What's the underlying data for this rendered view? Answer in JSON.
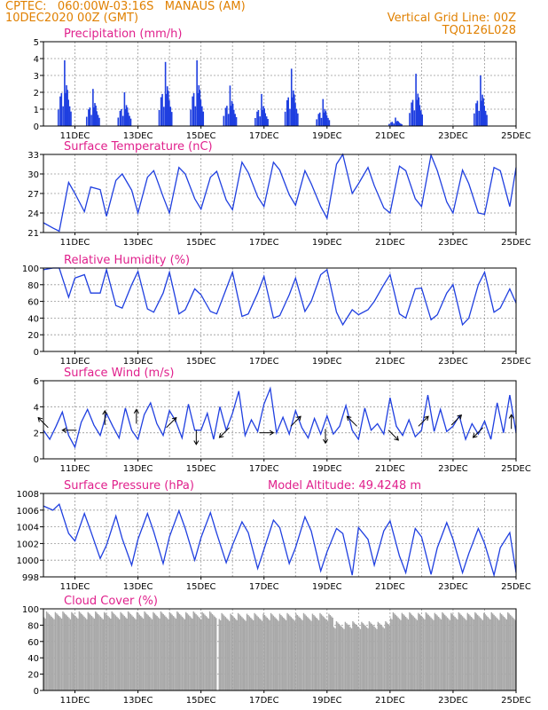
{
  "header": {
    "line1_left": "CPTEC:   060:00W-03:16S   MANAUS (AM)",
    "line2_left": "10DEC2020 00Z (GMT)",
    "line2_right": "Vertical Grid Line: 00Z",
    "line3_right": "TQ0126L028"
  },
  "colors": {
    "series": "#1f3fe0",
    "title": "#e0208c",
    "header": "#e08000",
    "cloud": "#a8a8a8"
  },
  "x_ticks": [
    "11DEC",
    "13DEC",
    "15DEC",
    "17DEC",
    "19DEC",
    "21DEC",
    "23DEC",
    "25DEC"
  ],
  "chart_data": [
    {
      "type": "bar",
      "title": "Precipitation (mm/h)",
      "x_unit": "days since 10DEC2020 00Z",
      "xlim": [
        0,
        15
      ],
      "ylim": [
        0,
        5
      ],
      "yticks": [
        0,
        1,
        2,
        3,
        4,
        5
      ],
      "grid": true,
      "events": [
        {
          "day": 0.65,
          "peak": 3.9
        },
        {
          "day": 1.55,
          "peak": 2.2
        },
        {
          "day": 2.55,
          "peak": 2.0
        },
        {
          "day": 3.85,
          "peak": 3.8
        },
        {
          "day": 4.85,
          "peak": 3.9
        },
        {
          "day": 5.9,
          "peak": 2.4
        },
        {
          "day": 6.9,
          "peak": 1.9
        },
        {
          "day": 7.85,
          "peak": 3.4
        },
        {
          "day": 8.85,
          "peak": 1.6
        },
        {
          "day": 11.15,
          "peak": 0.5
        },
        {
          "day": 11.8,
          "peak": 3.1
        },
        {
          "day": 13.85,
          "peak": 3.0
        }
      ]
    },
    {
      "type": "line",
      "title": "Surface Temperature (nC)",
      "x_unit": "days",
      "xlim": [
        0,
        15
      ],
      "ylim": [
        21,
        33
      ],
      "yticks": [
        21,
        24,
        27,
        30,
        33
      ],
      "grid": true,
      "x": [
        0,
        0.3,
        0.5,
        0.8,
        1.0,
        1.3,
        1.5,
        1.8,
        2.0,
        2.3,
        2.5,
        2.8,
        3.0,
        3.3,
        3.5,
        3.8,
        4.0,
        4.3,
        4.5,
        4.8,
        5.0,
        5.3,
        5.5,
        5.8,
        6.0,
        6.3,
        6.5,
        6.8,
        7.0,
        7.3,
        7.5,
        7.8,
        8.0,
        8.3,
        8.5,
        8.8,
        9.0,
        9.3,
        9.5,
        9.8,
        10.0,
        10.3,
        10.5,
        10.8,
        11.0,
        11.3,
        11.5,
        11.8,
        12.0,
        12.3,
        12.5,
        12.8,
        13.0,
        13.3,
        13.5,
        13.8,
        14.0,
        14.3,
        14.5,
        14.8,
        15.0
      ],
      "y": [
        22.5,
        21.7,
        21.2,
        28.7,
        27.0,
        24.2,
        28.0,
        27.6,
        23.5,
        29.0,
        30.0,
        27.5,
        24.0,
        29.5,
        30.5,
        26.5,
        24.0,
        31.0,
        30.0,
        26.2,
        24.6,
        29.5,
        30.4,
        26.0,
        24.5,
        31.8,
        30.2,
        26.5,
        25.0,
        31.8,
        30.6,
        26.8,
        25.2,
        30.5,
        28.5,
        25.0,
        23.2,
        31.5,
        33.2,
        27.0,
        28.5,
        31.0,
        28.2,
        24.8,
        24.0,
        31.2,
        30.5,
        26.2,
        25.0,
        32.9,
        30.5,
        25.7,
        24.0,
        30.6,
        28.5,
        24.0,
        23.8,
        31.0,
        30.5,
        25.0,
        31.0
      ]
    },
    {
      "type": "line",
      "title": "Relative Humidity (%)",
      "x_unit": "days",
      "xlim": [
        0,
        15
      ],
      "ylim": [
        0,
        100
      ],
      "yticks": [
        0,
        20,
        40,
        60,
        80,
        100
      ],
      "grid": true,
      "x": [
        0,
        0.3,
        0.5,
        0.8,
        1.0,
        1.3,
        1.5,
        1.8,
        2.0,
        2.3,
        2.5,
        2.8,
        3.0,
        3.3,
        3.5,
        3.8,
        4.0,
        4.3,
        4.5,
        4.8,
        5.0,
        5.3,
        5.5,
        5.8,
        6.0,
        6.3,
        6.5,
        6.8,
        7.0,
        7.3,
        7.5,
        7.8,
        8.0,
        8.3,
        8.5,
        8.8,
        9.0,
        9.3,
        9.5,
        9.8,
        10.0,
        10.3,
        10.5,
        10.8,
        11.0,
        11.3,
        11.5,
        11.8,
        12.0,
        12.3,
        12.5,
        12.8,
        13.0,
        13.3,
        13.5,
        13.8,
        14.0,
        14.3,
        14.5,
        14.8,
        15.0
      ],
      "y": [
        98,
        100,
        100,
        65,
        88,
        92,
        70,
        70,
        98,
        55,
        52,
        80,
        96,
        51,
        47,
        70,
        95,
        45,
        50,
        75,
        68,
        48,
        45,
        75,
        95,
        42,
        45,
        70,
        90,
        40,
        43,
        68,
        88,
        48,
        60,
        92,
        98,
        47,
        32,
        50,
        44,
        50,
        60,
        80,
        92,
        45,
        40,
        75,
        76,
        38,
        44,
        70,
        80,
        32,
        40,
        80,
        95,
        47,
        52,
        75,
        58
      ]
    },
    {
      "type": "line",
      "title": "Surface Wind (m/s)",
      "x_unit": "days",
      "xlim": [
        0,
        15
      ],
      "ylim": [
        0,
        6
      ],
      "yticks": [
        0,
        2,
        4,
        6
      ],
      "grid": true,
      "x": [
        0,
        0.2,
        0.4,
        0.6,
        0.8,
        1.0,
        1.2,
        1.4,
        1.6,
        1.8,
        2.0,
        2.2,
        2.4,
        2.6,
        2.8,
        3.0,
        3.2,
        3.4,
        3.6,
        3.8,
        4.0,
        4.2,
        4.4,
        4.6,
        4.8,
        5.0,
        5.2,
        5.4,
        5.6,
        5.8,
        6.0,
        6.2,
        6.4,
        6.6,
        6.8,
        7.0,
        7.2,
        7.4,
        7.6,
        7.8,
        8.0,
        8.2,
        8.4,
        8.6,
        8.8,
        9.0,
        9.2,
        9.4,
        9.6,
        9.8,
        10.0,
        10.2,
        10.4,
        10.6,
        10.8,
        11.0,
        11.2,
        11.4,
        11.6,
        11.8,
        12.0,
        12.2,
        12.4,
        12.6,
        12.8,
        13.0,
        13.2,
        13.4,
        13.6,
        13.8,
        14.0,
        14.2,
        14.4,
        14.6,
        14.8,
        15.0
      ],
      "y": [
        2.2,
        1.5,
        2.5,
        3.6,
        1.8,
        0.9,
        2.8,
        3.8,
        2.6,
        1.8,
        3.5,
        2.5,
        1.6,
        3.9,
        2.2,
        1.5,
        3.4,
        4.3,
        2.7,
        1.8,
        3.7,
        2.9,
        1.6,
        4.2,
        2.2,
        2.2,
        3.5,
        1.5,
        4.0,
        2.2,
        3.5,
        5.2,
        1.8,
        3.0,
        2.1,
        4.2,
        5.4,
        2.0,
        3.2,
        1.9,
        3.7,
        2.4,
        1.6,
        3.1,
        1.9,
        3.3,
        1.9,
        2.5,
        4.1,
        2.2,
        1.5,
        3.9,
        2.2,
        2.7,
        1.9,
        4.7,
        2.5,
        1.8,
        3.0,
        1.7,
        2.2,
        4.9,
        2.1,
        3.8,
        2.1,
        2.5,
        3.3,
        1.5,
        2.7,
        1.9,
        2.9,
        1.5,
        4.3,
        2.0,
        4.9,
        2.0
      ],
      "vectors": [
        {
          "day": 0.15,
          "len": 2.4,
          "dir": "upleft"
        },
        {
          "day": 1.05,
          "len": 2.2,
          "dir": "left"
        },
        {
          "day": 1.95,
          "len": 2.6,
          "dir": "up"
        },
        {
          "day": 2.95,
          "len": 2.7,
          "dir": "up"
        },
        {
          "day": 3.9,
          "len": 2.4,
          "dir": "upright"
        },
        {
          "day": 4.85,
          "len": 2.2,
          "dir": "down"
        },
        {
          "day": 5.9,
          "len": 2.4,
          "dir": "downleft"
        },
        {
          "day": 6.85,
          "len": 2.0,
          "dir": "right"
        },
        {
          "day": 7.85,
          "len": 2.5,
          "dir": "upright"
        },
        {
          "day": 8.95,
          "len": 2.3,
          "dir": "down"
        },
        {
          "day": 9.95,
          "len": 2.5,
          "dir": "upleft"
        },
        {
          "day": 10.95,
          "len": 2.2,
          "dir": "downright"
        },
        {
          "day": 11.9,
          "len": 2.5,
          "dir": "upright"
        },
        {
          "day": 12.95,
          "len": 2.6,
          "dir": "upright"
        },
        {
          "day": 13.95,
          "len": 2.4,
          "dir": "downleft"
        },
        {
          "day": 14.85,
          "len": 2.3,
          "dir": "up"
        }
      ]
    },
    {
      "type": "line",
      "title": "Surface Pressure (hPa)",
      "annotation": "Model Altitude: 49.4248 m",
      "x_unit": "days",
      "xlim": [
        0,
        15
      ],
      "ylim": [
        998,
        1008
      ],
      "yticks": [
        998,
        1000,
        1002,
        1004,
        1006,
        1008
      ],
      "grid": true,
      "x": [
        0,
        0.3,
        0.5,
        0.8,
        1.0,
        1.3,
        1.5,
        1.8,
        2.0,
        2.3,
        2.5,
        2.8,
        3.0,
        3.3,
        3.5,
        3.8,
        4.0,
        4.3,
        4.5,
        4.8,
        5.0,
        5.3,
        5.5,
        5.8,
        6.0,
        6.3,
        6.5,
        6.8,
        7.0,
        7.3,
        7.5,
        7.8,
        8.0,
        8.3,
        8.5,
        8.8,
        9.0,
        9.3,
        9.5,
        9.8,
        10.0,
        10.3,
        10.5,
        10.8,
        11.0,
        11.3,
        11.5,
        11.8,
        12.0,
        12.3,
        12.5,
        12.8,
        13.0,
        13.3,
        13.5,
        13.8,
        14.0,
        14.3,
        14.5,
        14.8,
        15.0
      ],
      "y": [
        1006.5,
        1006.0,
        1006.7,
        1003.2,
        1002.3,
        1005.6,
        1003.5,
        1000.2,
        1001.8,
        1005.3,
        1002.6,
        999.4,
        1002.5,
        1005.6,
        1003.4,
        999.6,
        1002.8,
        1005.9,
        1003.8,
        1000.0,
        1002.7,
        1005.7,
        1003.2,
        999.7,
        1001.8,
        1004.6,
        1003.3,
        999.0,
        1001.3,
        1004.8,
        1003.9,
        999.6,
        1001.5,
        1005.2,
        1003.5,
        998.7,
        1001.0,
        1003.8,
        1003.2,
        998.2,
        1003.9,
        1002.5,
        999.4,
        1003.5,
        1004.7,
        1000.5,
        998.5,
        1003.8,
        1002.8,
        998.3,
        1001.5,
        1004.5,
        1002.5,
        998.5,
        1000.8,
        1003.8,
        1002.0,
        998.2,
        1001.5,
        1003.3,
        998.5
      ]
    },
    {
      "type": "bar",
      "title": "Cloud Cover (%)",
      "x_unit": "days",
      "xlim": [
        0,
        15
      ],
      "ylim": [
        0,
        100
      ],
      "yticks": [
        0,
        20,
        40,
        60,
        80,
        100
      ],
      "grid": true,
      "segments": [
        {
          "from": 0,
          "to": 5.5,
          "level": 92
        },
        {
          "from": 5.5,
          "to": 5.56,
          "level": 0
        },
        {
          "from": 5.56,
          "to": 9.2,
          "level": 90
        },
        {
          "from": 9.2,
          "to": 11.0,
          "level": 80
        },
        {
          "from": 11.0,
          "to": 15,
          "level": 91
        }
      ]
    }
  ]
}
